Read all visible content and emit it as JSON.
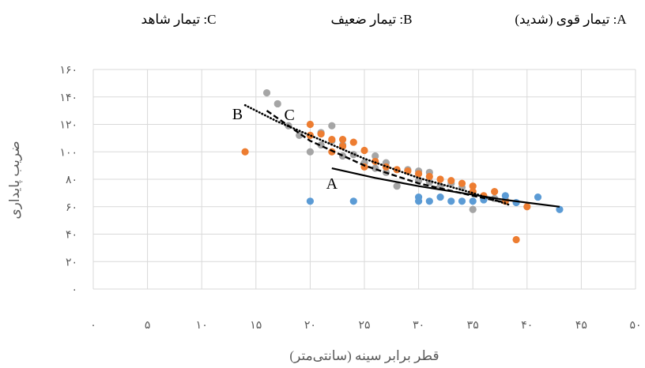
{
  "chart_data": {
    "type": "scatter",
    "xlabel": "قطر برابر سینه (سانتی‌متر)",
    "ylabel": "ضریب پایداری",
    "xlim": [
      0,
      50
    ],
    "ylim": [
      0,
      160
    ],
    "x_ticks": [
      0,
      5,
      10,
      15,
      20,
      25,
      30,
      35,
      40,
      45,
      50
    ],
    "x_tick_labels": [
      "۰",
      "۵",
      "۱۰",
      "۱۵",
      "۲۰",
      "۲۵",
      "۳۰",
      "۳۵",
      "۴۰",
      "۴۵",
      "۵۰"
    ],
    "y_ticks": [
      0,
      20,
      40,
      60,
      80,
      100,
      120,
      140,
      160
    ],
    "y_tick_labels": [
      "۰",
      "۲۰",
      "۴۰",
      "۶۰",
      "۸۰",
      "۱۰۰",
      "۱۲۰",
      "۱۴۰",
      "۱۶۰"
    ],
    "grid": true,
    "legend_placement": "top",
    "series": [
      {
        "name": "A: تیمار قوی (شدید)",
        "color": "#5B9BD5",
        "points": [
          [
            20,
            64
          ],
          [
            24,
            64
          ],
          [
            30,
            67
          ],
          [
            30,
            64
          ],
          [
            31,
            64
          ],
          [
            32,
            67
          ],
          [
            33,
            64
          ],
          [
            34,
            64
          ],
          [
            35,
            64
          ],
          [
            36,
            65
          ],
          [
            38,
            68
          ],
          [
            39,
            63
          ],
          [
            41,
            67
          ],
          [
            43,
            58
          ]
        ]
      },
      {
        "name": "B: تیمار ضعیف",
        "color": "#ED7D31",
        "points": [
          [
            14,
            100
          ],
          [
            20,
            120
          ],
          [
            20,
            112
          ],
          [
            21,
            113
          ],
          [
            22,
            109
          ],
          [
            22,
            100
          ],
          [
            23,
            109
          ],
          [
            23,
            104
          ],
          [
            24,
            107
          ],
          [
            25,
            101
          ],
          [
            25,
            89
          ],
          [
            26,
            93
          ],
          [
            27,
            89
          ],
          [
            28,
            87
          ],
          [
            29,
            86
          ],
          [
            30,
            84
          ],
          [
            31,
            82
          ],
          [
            32,
            80
          ],
          [
            33,
            79
          ],
          [
            34,
            77
          ],
          [
            35,
            75
          ],
          [
            35,
            71
          ],
          [
            36,
            68
          ],
          [
            37,
            71
          ],
          [
            38,
            64
          ],
          [
            39,
            36
          ],
          [
            40,
            60
          ]
        ]
      },
      {
        "name": "C: تیمار شاهد",
        "color": "#A5A5A5",
        "points": [
          [
            16,
            143
          ],
          [
            17,
            135
          ],
          [
            18,
            119
          ],
          [
            19,
            112
          ],
          [
            20,
            100
          ],
          [
            21,
            114
          ],
          [
            21,
            105
          ],
          [
            22,
            119
          ],
          [
            22,
            108
          ],
          [
            23,
            105
          ],
          [
            23,
            97
          ],
          [
            24,
            98
          ],
          [
            25,
            92
          ],
          [
            26,
            97
          ],
          [
            26,
            88
          ],
          [
            27,
            92
          ],
          [
            27,
            85
          ],
          [
            28,
            75
          ],
          [
            29,
            87
          ],
          [
            30,
            86
          ],
          [
            30,
            79
          ],
          [
            31,
            85
          ],
          [
            31,
            78
          ],
          [
            32,
            75
          ],
          [
            33,
            77
          ],
          [
            34,
            74
          ],
          [
            35,
            58
          ],
          [
            36,
            66
          ],
          [
            37,
            66
          ],
          [
            38,
            65
          ]
        ]
      }
    ],
    "trendlines": [
      {
        "label": "A",
        "style": "solid",
        "color": "#000000",
        "points": [
          [
            22,
            88
          ],
          [
            26,
            81
          ],
          [
            30,
            75
          ],
          [
            34,
            70
          ],
          [
            38,
            65
          ],
          [
            43,
            60
          ]
        ]
      },
      {
        "label": "B",
        "style": "dotted",
        "color": "#000000",
        "points": [
          [
            14,
            134
          ],
          [
            17,
            122
          ],
          [
            20,
            112
          ],
          [
            25,
            95
          ],
          [
            30,
            81
          ],
          [
            35,
            70
          ],
          [
            38.5,
            61
          ]
        ]
      },
      {
        "label": "C",
        "style": "dashed",
        "color": "#000000",
        "points": [
          [
            16,
            130
          ],
          [
            20,
            108
          ],
          [
            25,
            90
          ],
          [
            30,
            77
          ],
          [
            35,
            68
          ],
          [
            38,
            63
          ]
        ]
      }
    ]
  }
}
